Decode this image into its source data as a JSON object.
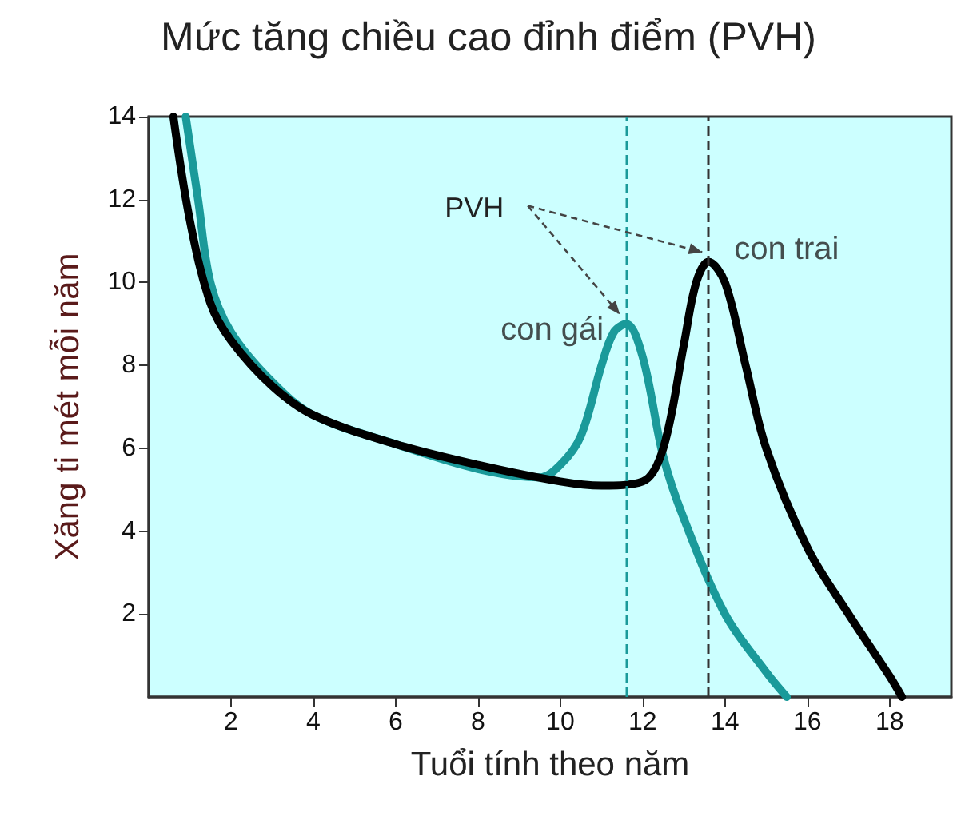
{
  "chart_data": {
    "type": "line",
    "title": "Mức tăng chiều cao đỉnh điểm (PVH)",
    "xlabel": "Tuổi tính theo năm",
    "ylabel": "Xăng ti mét mỗi năm",
    "xlim": [
      0,
      19.5
    ],
    "xticks": [
      2,
      4,
      6,
      8,
      10,
      12,
      14,
      16,
      18
    ],
    "ylim": [
      0,
      14
    ],
    "yticks": [
      2,
      4,
      6,
      8,
      10,
      12,
      14
    ],
    "grid": false,
    "legend": false,
    "marker": "none",
    "line_style": "solid",
    "annotations": [
      {
        "text": "PVH",
        "x": 13.6,
        "y": 10.5
      }
    ],
    "ref_lines": [
      {
        "axis": "x",
        "value": 11.6,
        "color": "#1a9a9a",
        "line_style": "dashed"
      },
      {
        "axis": "x",
        "value": 13.6,
        "color": "#333333",
        "line_style": "dashed"
      }
    ],
    "series": [
      {
        "name": "con gái",
        "color": "#1a9a9a",
        "x": [
          0.9,
          1.2,
          1.5,
          2,
          3,
          4,
          6,
          8,
          9.5,
          10,
          10.5,
          11,
          11.3,
          11.6,
          12,
          12.5,
          13,
          14,
          15,
          15.5
        ],
        "values": [
          14,
          12,
          10,
          8.8,
          7.6,
          6.8,
          6.1,
          5.5,
          5.3,
          5.6,
          6.3,
          8,
          8.8,
          9,
          8.2,
          5.8,
          4.3,
          2,
          0.6,
          0
        ]
      },
      {
        "name": "con trai",
        "color": "#000000",
        "x": [
          0.6,
          1,
          1.5,
          2,
          3,
          4,
          6,
          8,
          10,
          11,
          12,
          12.5,
          13,
          13.3,
          13.6,
          14,
          14.5,
          15,
          16,
          17,
          18,
          18.3
        ],
        "values": [
          14,
          11.5,
          9.5,
          8.6,
          7.5,
          6.8,
          6.1,
          5.6,
          5.2,
          5.1,
          5.2,
          6,
          8.5,
          10,
          10.5,
          10,
          8,
          6,
          3.6,
          2,
          0.5,
          0
        ]
      }
    ]
  }
}
